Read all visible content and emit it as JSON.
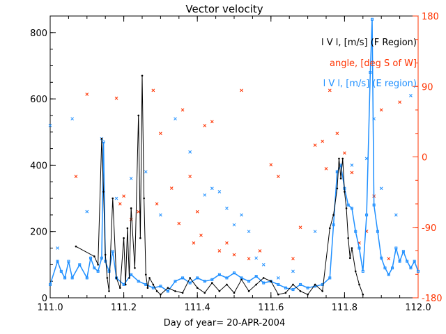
{
  "chart_data": {
    "type": "line",
    "title": "Vector velocity",
    "xlabel": "Day of year= 20-APR-2004",
    "xlim": [
      111.0,
      112.0
    ],
    "x_ticks": [
      "111.0",
      "111.2",
      "111.4",
      "111.6",
      "111.8",
      "112.0"
    ],
    "y_left": {
      "lim": [
        0,
        850
      ],
      "ticks": [
        "0",
        "200",
        "400",
        "600",
        "800"
      ]
    },
    "y_right": {
      "lim": [
        -180,
        180
      ],
      "ticks": [
        "-180",
        "-90",
        "0",
        "90",
        "180"
      ],
      "color": "#ff3300"
    },
    "legend_position": "top-right",
    "colors": {
      "f_region": "#000000",
      "angle": "#ff3300",
      "e_region": "#1e8fff"
    },
    "legend": [
      {
        "text": "l V l, [m/s] (F Region)",
        "color": "#000000"
      },
      {
        "text": "angle, [deg S of W]",
        "color": "#ff3300"
      },
      {
        "text": "l V l, [m/s] (E region)",
        "color": "#1e8fff"
      }
    ],
    "series": [
      {
        "name": "l V l, [m/s] (F Region)",
        "axis": "left",
        "style": "line-dots",
        "x": [
          111.07,
          111.12,
          111.13,
          111.14,
          111.145,
          111.15,
          111.155,
          111.16,
          111.17,
          111.18,
          111.19,
          111.2,
          111.205,
          111.21,
          111.215,
          111.22,
          111.23,
          111.24,
          111.245,
          111.25,
          111.255,
          111.26,
          111.265,
          111.27,
          111.28,
          111.29,
          111.3,
          111.32,
          111.34,
          111.36,
          111.38,
          111.4,
          111.42,
          111.44,
          111.46,
          111.48,
          111.5,
          111.52,
          111.54,
          111.56,
          111.58,
          111.6,
          111.62,
          111.64,
          111.66,
          111.68,
          111.7,
          111.72,
          111.74,
          111.76,
          111.77,
          111.78,
          111.785,
          111.79,
          111.795,
          111.8,
          111.805,
          111.81,
          111.815,
          111.82,
          111.83,
          111.84,
          111.85
        ],
        "y": [
          155,
          125,
          100,
          480,
          320,
          130,
          60,
          20,
          300,
          60,
          30,
          180,
          40,
          210,
          60,
          270,
          90,
          550,
          180,
          670,
          300,
          70,
          30,
          60,
          40,
          20,
          10,
          30,
          20,
          15,
          60,
          30,
          15,
          45,
          20,
          40,
          15,
          55,
          20,
          40,
          60,
          50,
          10,
          15,
          40,
          20,
          10,
          40,
          20,
          210,
          250,
          330,
          420,
          360,
          420,
          320,
          270,
          180,
          120,
          150,
          80,
          40,
          10
        ]
      },
      {
        "name": "angle, [deg S of W]",
        "axis": "right",
        "style": "marker-x",
        "x": [
          111.07,
          111.1,
          111.18,
          111.19,
          111.2,
          111.22,
          111.24,
          111.28,
          111.29,
          111.3,
          111.33,
          111.35,
          111.36,
          111.38,
          111.39,
          111.4,
          111.41,
          111.42,
          111.44,
          111.46,
          111.48,
          111.5,
          111.52,
          111.54,
          111.57,
          111.6,
          111.62,
          111.66,
          111.68,
          111.72,
          111.74,
          111.75,
          111.76,
          111.78,
          111.8,
          111.82,
          111.84,
          111.86,
          111.88,
          111.9,
          111.92,
          111.95
        ],
        "y": [
          -25,
          80,
          75,
          -60,
          -50,
          -80,
          -70,
          85,
          -60,
          30,
          -40,
          -85,
          60,
          -25,
          -110,
          -70,
          -100,
          40,
          45,
          -120,
          -110,
          -125,
          85,
          -130,
          -120,
          -10,
          -25,
          -130,
          -90,
          15,
          20,
          -15,
          85,
          30,
          5,
          -20,
          -110,
          -95,
          -50,
          60,
          -130,
          70
        ]
      },
      {
        "name": "l V l, [m/s] (E region)",
        "axis": "left",
        "style": "line-squares-with-x",
        "x": [
          111.0,
          111.02,
          111.03,
          111.04,
          111.05,
          111.06,
          111.08,
          111.1,
          111.11,
          111.12,
          111.13,
          111.14,
          111.145,
          111.15,
          111.16,
          111.17,
          111.18,
          111.2,
          111.22,
          111.24,
          111.26,
          111.28,
          111.3,
          111.32,
          111.34,
          111.36,
          111.38,
          111.4,
          111.42,
          111.44,
          111.46,
          111.48,
          111.5,
          111.52,
          111.54,
          111.56,
          111.58,
          111.6,
          111.62,
          111.64,
          111.66,
          111.68,
          111.7,
          111.72,
          111.74,
          111.76,
          111.77,
          111.78,
          111.79,
          111.8,
          111.81,
          111.82,
          111.83,
          111.84,
          111.85,
          111.86,
          111.87,
          111.875,
          111.88,
          111.89,
          111.9,
          111.91,
          111.92,
          111.93,
          111.94,
          111.95,
          111.96,
          111.97,
          111.98,
          111.99,
          112.0
        ],
        "y": [
          40,
          110,
          80,
          60,
          110,
          60,
          100,
          60,
          120,
          90,
          80,
          120,
          470,
          110,
          80,
          140,
          60,
          40,
          70,
          50,
          40,
          30,
          35,
          20,
          50,
          60,
          45,
          60,
          50,
          55,
          70,
          60,
          75,
          60,
          50,
          65,
          45,
          50,
          40,
          30,
          25,
          40,
          30,
          35,
          40,
          60,
          220,
          380,
          400,
          330,
          280,
          270,
          200,
          150,
          80,
          250,
          680,
          840,
          280,
          200,
          120,
          90,
          70,
          90,
          150,
          110,
          140,
          110,
          90,
          110,
          80
        ]
      }
    ],
    "e_region_scatter": {
      "x": [
        111.0,
        111.02,
        111.06,
        111.1,
        111.14,
        111.18,
        111.22,
        111.26,
        111.3,
        111.34,
        111.38,
        111.42,
        111.44,
        111.46,
        111.48,
        111.5,
        111.52,
        111.54,
        111.56,
        111.58,
        111.62,
        111.66,
        111.72,
        111.78,
        111.82,
        111.86,
        111.88,
        111.9,
        111.94,
        111.98
      ],
      "y": [
        520,
        150,
        540,
        260,
        480,
        300,
        360,
        380,
        250,
        540,
        440,
        310,
        330,
        320,
        270,
        220,
        250,
        200,
        120,
        100,
        60,
        80,
        200,
        380,
        400,
        420,
        540,
        330,
        250,
        610
      ]
    }
  }
}
